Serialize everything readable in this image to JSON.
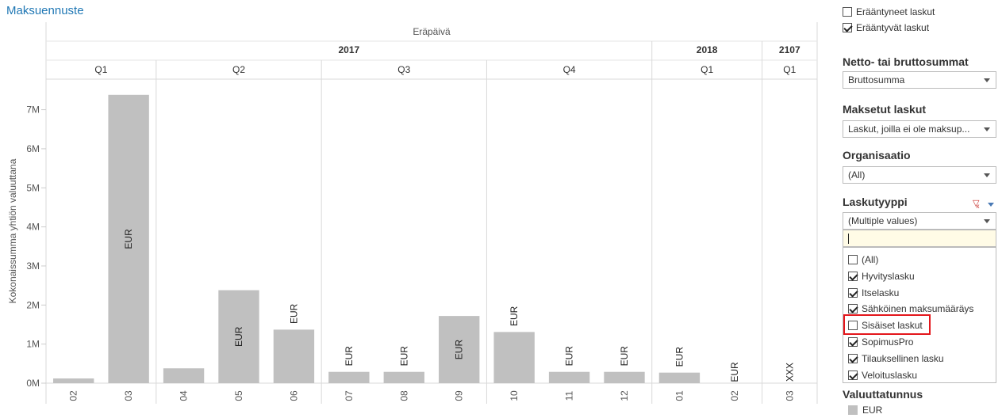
{
  "title": "Maksuennuste",
  "chart_data": {
    "type": "bar",
    "column_header": "Eräpäivä",
    "years": [
      "2017",
      "2018",
      "2107"
    ],
    "quarters": [
      "Q1",
      "Q2",
      "Q3",
      "Q4",
      "Q1",
      "Q1"
    ],
    "categories": [
      "02",
      "03",
      "04",
      "05",
      "06",
      "07",
      "08",
      "09",
      "10",
      "11",
      "12",
      "01",
      "02",
      "03"
    ],
    "values": [
      120000,
      7380000,
      380000,
      2380000,
      1370000,
      290000,
      290000,
      1720000,
      1310000,
      290000,
      290000,
      270000,
      0,
      0
    ],
    "mark_labels": [
      "",
      "EUR",
      "",
      "EUR",
      "EUR",
      "EUR",
      "EUR",
      "EUR",
      "EUR",
      "EUR",
      "EUR",
      "EUR",
      "EUR",
      "XXX"
    ],
    "ylabel": "Kokonaissumma yhtiön valuuttana",
    "yticks": [
      "0M",
      "1M",
      "2M",
      "3M",
      "4M",
      "5M",
      "6M",
      "7M"
    ],
    "ylim": [
      0,
      7700000
    ],
    "bar_color": "#c0c0c0"
  },
  "panel": {
    "top_checks": [
      {
        "label": "Erääntyneet laskut",
        "checked": false
      },
      {
        "label": "Erääntyvät laskut",
        "checked": true
      }
    ],
    "netto": {
      "title": "Netto- tai bruttosummat",
      "value": "Bruttosumma"
    },
    "maksetut": {
      "title": "Maksetut laskut",
      "value": "Laskut, joilla ei ole maksup..."
    },
    "organisaatio": {
      "title": "Organisaatio",
      "value": "(All)"
    },
    "laskutyyppi": {
      "title": "Laskutyyppi",
      "value": "(Multiple values)",
      "options": [
        {
          "label": "(All)",
          "checked": false
        },
        {
          "label": "Hyvityslasku",
          "checked": true
        },
        {
          "label": "Itselasku",
          "checked": true
        },
        {
          "label": "Sähköinen maksumääräys",
          "checked": true
        },
        {
          "label": "Sisäiset laskut",
          "checked": false
        },
        {
          "label": "SopimusPro",
          "checked": true
        },
        {
          "label": "Tilauksellinen lasku",
          "checked": true
        },
        {
          "label": "Veloituslasku",
          "checked": true
        }
      ]
    },
    "valuutta": {
      "title": "Valuuttatunnus",
      "legend": "EUR"
    }
  }
}
